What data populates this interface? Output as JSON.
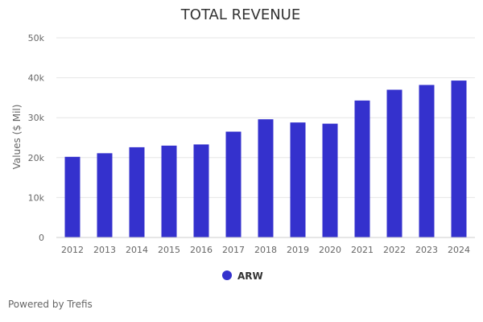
{
  "chart_data": {
    "type": "bar",
    "title": "TOTAL REVENUE",
    "xlabel": "",
    "ylabel": "Values ($ Mil)",
    "categories": [
      "2012",
      "2013",
      "2014",
      "2015",
      "2016",
      "2017",
      "2018",
      "2019",
      "2020",
      "2021",
      "2022",
      "2023",
      "2024"
    ],
    "series": [
      {
        "name": "ARW",
        "color": "#3431cd",
        "values": [
          20200,
          21100,
          22600,
          23000,
          23300,
          26500,
          29600,
          28800,
          28500,
          34300,
          37000,
          38200,
          39300
        ]
      }
    ],
    "ylim": [
      0,
      50000
    ],
    "yticks": [
      0,
      10000,
      20000,
      30000,
      40000,
      50000
    ],
    "ytick_labels": [
      "0",
      "10k",
      "20k",
      "30k",
      "40k",
      "50k"
    ],
    "grid": true,
    "legend_position": "bottom-center"
  },
  "footer": {
    "powered_by": "Powered by Trefis"
  }
}
